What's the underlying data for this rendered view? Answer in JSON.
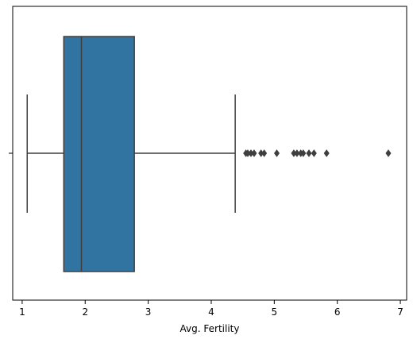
{
  "chart_data": {
    "type": "box",
    "orientation": "horizontal",
    "xlabel": "Avg. Fertility",
    "ylabel": "",
    "y_tick_labels": [
      ""
    ],
    "xlim": [
      0.85,
      7.1
    ],
    "x_ticks": [
      1,
      2,
      3,
      4,
      5,
      6,
      7
    ],
    "grid": false,
    "box": {
      "whisker_low": 1.08,
      "q1": 1.66,
      "median": 1.94,
      "q3": 2.78,
      "whisker_high": 4.38,
      "fill_color": "#3274a1",
      "line_color": "#3f3f3f"
    },
    "outliers": [
      4.55,
      4.58,
      4.63,
      4.68,
      4.79,
      4.84,
      5.04,
      5.31,
      5.36,
      5.42,
      5.46,
      5.55,
      5.63,
      5.83,
      6.81
    ]
  }
}
